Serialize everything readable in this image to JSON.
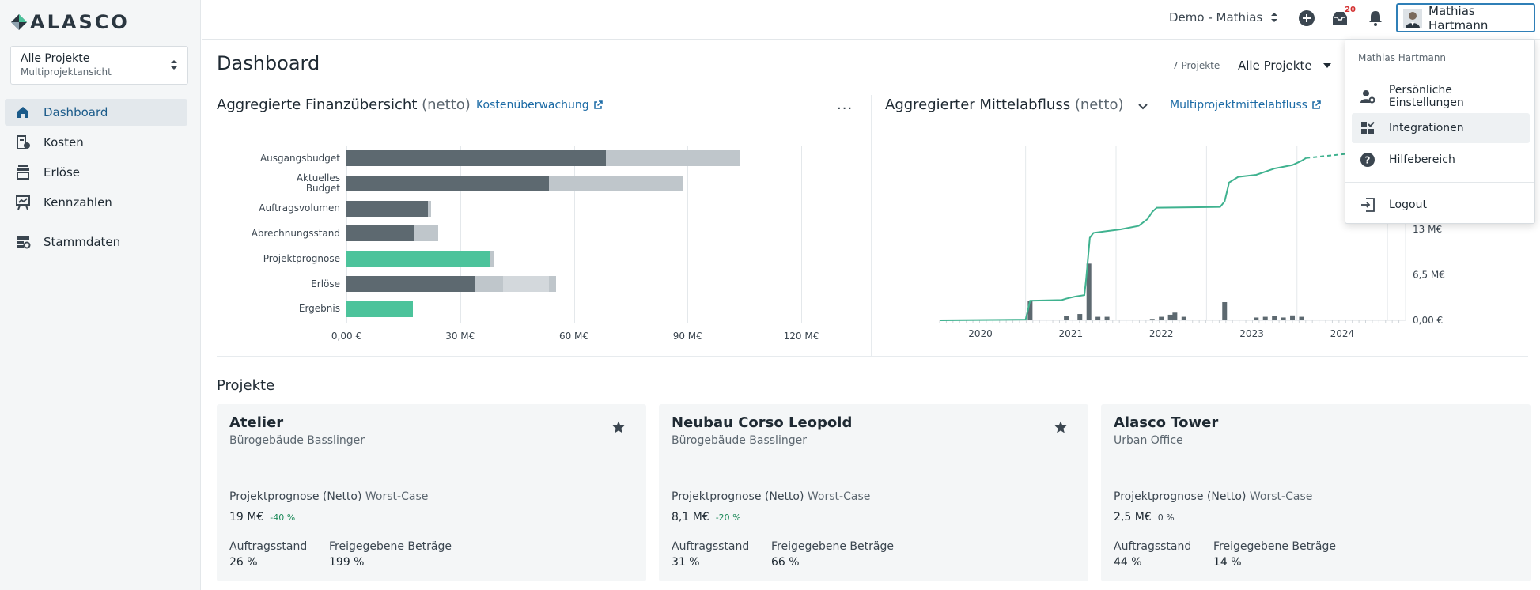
{
  "brand": {
    "name": "ALASCO"
  },
  "sidebar": {
    "project_select": {
      "title": "Alle Projekte",
      "subtitle": "Multiprojektansicht"
    },
    "items": [
      {
        "label": "Dashboard",
        "icon": "home-icon",
        "active": true
      },
      {
        "label": "Kosten",
        "icon": "costs-icon"
      },
      {
        "label": "Erlöse",
        "icon": "revenue-icon"
      },
      {
        "label": "Kennzahlen",
        "icon": "kpi-icon"
      },
      {
        "label": "Stammdaten",
        "icon": "master-data-icon"
      }
    ]
  },
  "topbar": {
    "workspace": "Demo - Mathias",
    "notifications_badge": "20",
    "user_name": "Mathias Hartmann"
  },
  "main": {
    "title": "Dashboard",
    "project_count": "7 Projekte",
    "project_filter": "Alle Projekte"
  },
  "finance_card": {
    "title": "Aggregierte Finanzübersicht",
    "title_suffix": "(netto)",
    "link": "Kostenüberwachung",
    "menu": "···"
  },
  "cashflow_card": {
    "title": "Aggregierter Mittelabfluss",
    "title_suffix": "(netto)",
    "link": "Multiprojektmittelabfluss"
  },
  "chart_data": [
    {
      "type": "bar",
      "orientation": "horizontal",
      "categories": [
        "Ausgangsbudget",
        "Aktuelles Budget",
        "Auftragsvolumen",
        "Abrechnungsstand",
        "Projektprognose",
        "Erlöse",
        "Ergebnis"
      ],
      "category_labels": [
        [
          "Ausgangsbudget"
        ],
        [
          "Aktuelles",
          "Budget"
        ],
        [
          "Auftragsvolumen"
        ],
        [
          "Abrechnungsstand"
        ],
        [
          "Projektprognose"
        ],
        [
          "Erlöse"
        ],
        [
          "Ergebnis"
        ]
      ],
      "series_segments": [
        [
          {
            "value": 68.5,
            "color": "#5d6970"
          },
          {
            "value": 35.5,
            "color": "#bfc6cb"
          }
        ],
        [
          {
            "value": 53.5,
            "color": "#5d6970"
          },
          {
            "value": 35.5,
            "color": "#bfc6cb"
          }
        ],
        [
          {
            "value": 21.5,
            "color": "#5d6970"
          },
          {
            "value": 0.8,
            "color": "#bfc6cb"
          }
        ],
        [
          {
            "value": 18.0,
            "color": "#5d6970"
          },
          {
            "value": 6.2,
            "color": "#bfc6cb"
          }
        ],
        [
          {
            "value": 38.0,
            "color": "#4cc39b"
          },
          {
            "value": 0.8,
            "color": "#bfc6cb"
          }
        ],
        [
          {
            "value": 34.0,
            "color": "#5d6970"
          },
          {
            "value": 7.3,
            "color": "#bfc6cb"
          },
          {
            "value": 12.2,
            "color": "#d3d8dc"
          },
          {
            "value": 1.9,
            "color": "#bfc6cb"
          }
        ],
        [
          {
            "value": 17.5,
            "color": "#4cc39b"
          }
        ]
      ],
      "xlim": [
        0,
        120
      ],
      "xticks": [
        "0,00 €",
        "30 M€",
        "60 M€",
        "90 M€",
        "120 M€"
      ],
      "grid": true
    },
    {
      "type": "line",
      "x_labels": [
        "2020",
        "2021",
        "2022",
        "2023",
        "2024"
      ],
      "y_ticks": [
        "0,00 €",
        "6,5 M€",
        "13 M€"
      ],
      "ylim": [
        0,
        26
      ],
      "series": [
        {
          "line_color": "#3fb28f",
          "points": [
            [
              2019.6,
              0
            ],
            [
              2020.55,
              0.1
            ],
            [
              2020.6,
              2.8
            ],
            [
              2020.95,
              2.9
            ],
            [
              2021.0,
              3.1
            ],
            [
              2021.1,
              3.4
            ],
            [
              2021.2,
              3.6
            ],
            [
              2021.22,
              6.0
            ],
            [
              2021.26,
              11.8
            ],
            [
              2021.3,
              12.5
            ],
            [
              2021.6,
              13.0
            ],
            [
              2021.8,
              13.5
            ],
            [
              2021.9,
              14.5
            ],
            [
              2021.95,
              15.5
            ],
            [
              2022.0,
              16.1
            ],
            [
              2022.7,
              16.2
            ],
            [
              2022.75,
              17.0
            ],
            [
              2022.8,
              19.7
            ],
            [
              2022.9,
              20.5
            ],
            [
              2023.1,
              20.8
            ],
            [
              2023.3,
              21.7
            ],
            [
              2023.5,
              22.2
            ],
            [
              2023.6,
              22.8
            ],
            [
              2023.65,
              23.2
            ]
          ],
          "projection": [
            [
              2023.65,
              23.2
            ],
            [
              2024.1,
              23.8
            ]
          ]
        }
      ],
      "bars": [
        [
          2020.6,
          2.8
        ],
        [
          2021.0,
          0.6
        ],
        [
          2021.15,
          0.9
        ],
        [
          2021.25,
          8.1
        ],
        [
          2021.35,
          0.5
        ],
        [
          2021.45,
          0.5
        ],
        [
          2021.95,
          0.2
        ],
        [
          2022.05,
          0.5
        ],
        [
          2022.15,
          0.8
        ],
        [
          2022.2,
          1.1
        ],
        [
          2022.3,
          0.5
        ],
        [
          2022.75,
          2.6
        ],
        [
          2023.1,
          0.4
        ],
        [
          2023.2,
          0.5
        ],
        [
          2023.3,
          0.6
        ],
        [
          2023.4,
          0.4
        ],
        [
          2023.5,
          0.7
        ],
        [
          2023.6,
          0.5
        ]
      ],
      "bar_color": "#5d6970"
    }
  ],
  "projects": {
    "title": "Projekte",
    "cards": [
      {
        "name": "Atelier",
        "subtitle": "Bürogebäude Basslinger",
        "prog_label": "Projektprognose (Netto)",
        "prog_case": "Worst-Case",
        "value": "19 M€",
        "delta": "-40 %",
        "k1": "Auftragsstand",
        "v1": "26 %",
        "k2": "Freigegebene Beträge",
        "v2": "199 %",
        "starred": true
      },
      {
        "name": "Neubau Corso Leopold",
        "subtitle": "Bürogebäude Basslinger",
        "prog_label": "Projektprognose (Netto)",
        "prog_case": "Worst-Case",
        "value": "8,1 M€",
        "delta": "-20 %",
        "k1": "Auftragsstand",
        "v1": "31 %",
        "k2": "Freigegebene Beträge",
        "v2": "66 %",
        "starred": true
      },
      {
        "name": "Alasco Tower",
        "subtitle": "Urban Office",
        "prog_label": "Projektprognose (Netto)",
        "prog_case": "Worst-Case",
        "value": "2,5 M€",
        "delta": "0 %",
        "k1": "Auftragsstand",
        "v1": "44 %",
        "k2": "Freigegebene Beträge",
        "v2": "14 %",
        "starred": false
      }
    ]
  },
  "user_menu": {
    "header": "Mathias Hartmann",
    "items": [
      {
        "label": "Persönliche Einstellungen",
        "icon": "user-settings-icon"
      },
      {
        "label": "Integrationen",
        "icon": "integrations-icon"
      },
      {
        "label": "Hilfebereich",
        "icon": "help-icon"
      },
      {
        "label": "Logout",
        "icon": "logout-icon"
      }
    ]
  }
}
